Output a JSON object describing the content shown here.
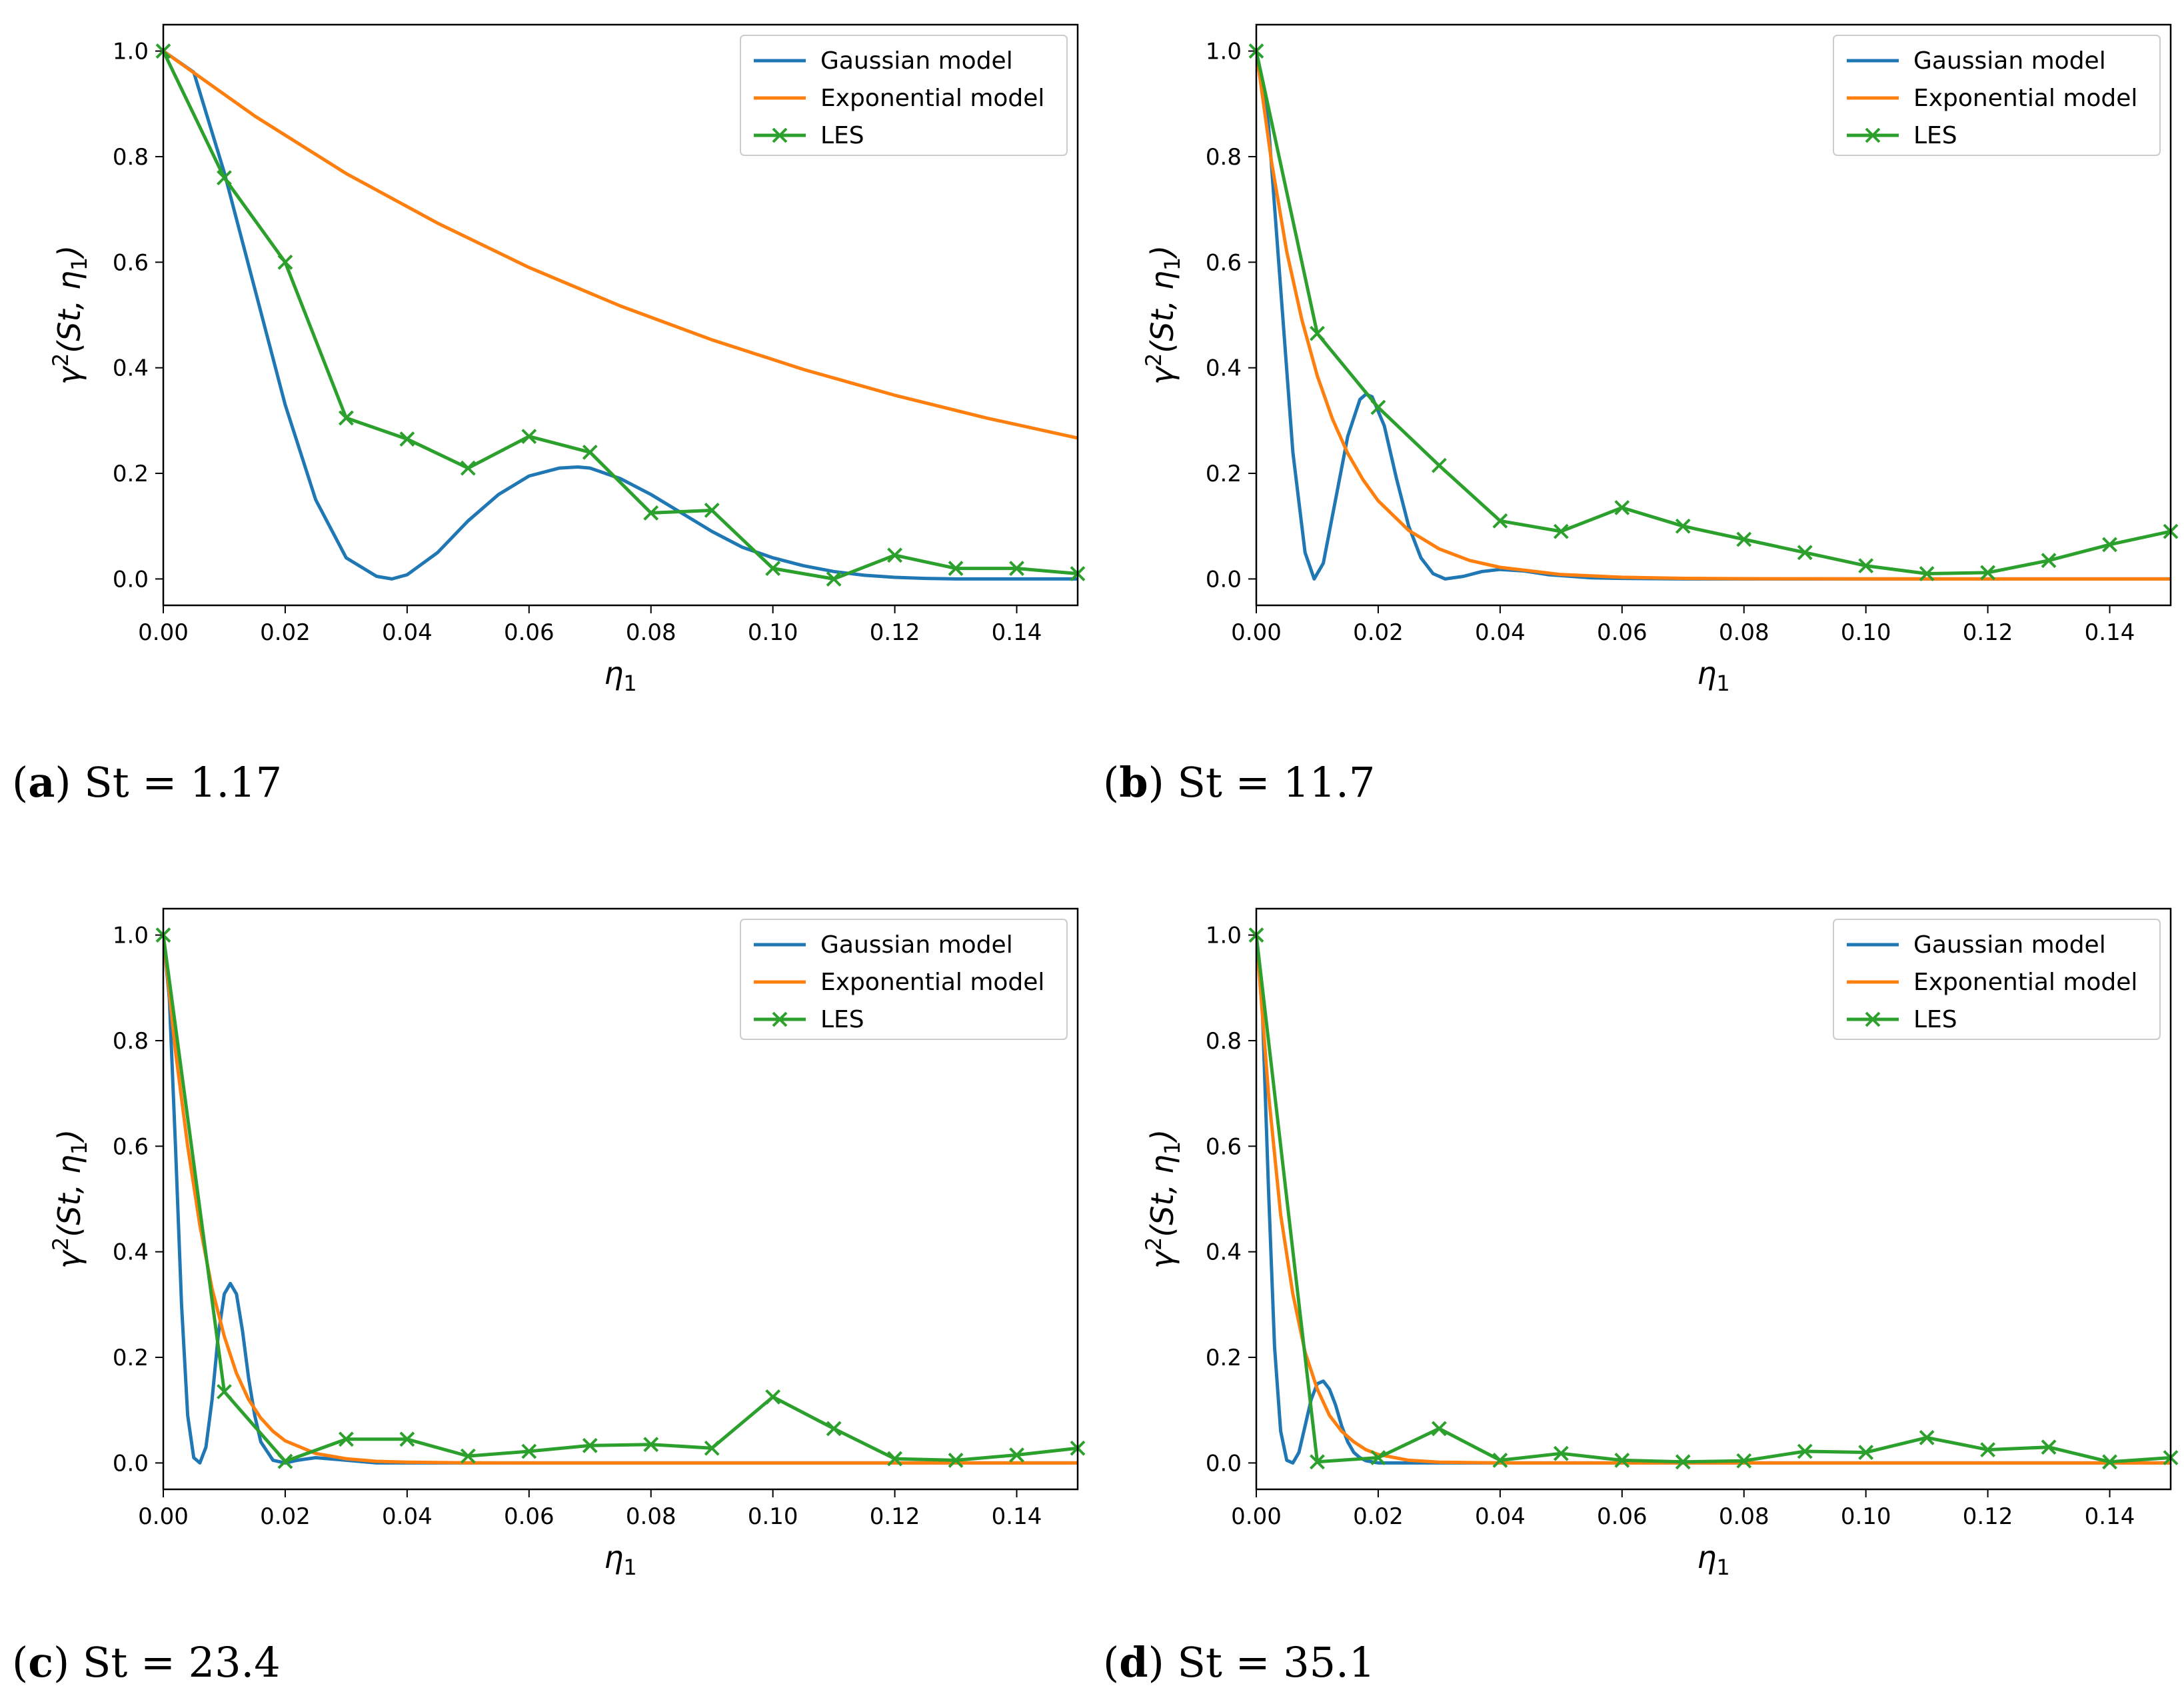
{
  "legend": {
    "gaussian": "Gaussian model",
    "exponential": "Exponential model",
    "les": "LES"
  },
  "colors": {
    "gaussian": "#1f77b4",
    "exponential": "#ff7f0e",
    "les": "#2ca02c"
  },
  "chart_data": [
    {
      "type": "line",
      "panel": "(a)",
      "caption_letter": "a",
      "caption_text": "St = 1.17",
      "xlabel": "η1",
      "ylabel": "γ2(St, η1)",
      "xlim": [
        0,
        0.15
      ],
      "ylim": [
        -0.05,
        1.05
      ],
      "xticks": [
        "0.00",
        "0.02",
        "0.04",
        "0.06",
        "0.08",
        "0.10",
        "0.12",
        "0.14"
      ],
      "yticks": [
        "0.0",
        "0.2",
        "0.4",
        "0.6",
        "0.8",
        "1.0"
      ],
      "legend_position": "top-right",
      "series": [
        {
          "name": "Gaussian model",
          "key": "gaussian",
          "x": [
            0,
            0.005,
            0.01,
            0.015,
            0.02,
            0.025,
            0.03,
            0.035,
            0.0375,
            0.04,
            0.045,
            0.05,
            0.055,
            0.06,
            0.065,
            0.068,
            0.07,
            0.075,
            0.08,
            0.085,
            0.09,
            0.095,
            0.1,
            0.105,
            0.11,
            0.115,
            0.12,
            0.125,
            0.13,
            0.14,
            0.15
          ],
          "y": [
            1.0,
            0.96,
            0.77,
            0.55,
            0.33,
            0.15,
            0.04,
            0.005,
            0.0,
            0.008,
            0.05,
            0.11,
            0.16,
            0.195,
            0.21,
            0.212,
            0.21,
            0.19,
            0.16,
            0.125,
            0.09,
            0.06,
            0.04,
            0.025,
            0.014,
            0.007,
            0.003,
            0.001,
            0.0,
            0.0,
            0.0
          ]
        },
        {
          "name": "Exponential model",
          "key": "exponential",
          "x": [
            0,
            0.015,
            0.03,
            0.045,
            0.06,
            0.075,
            0.09,
            0.105,
            0.12,
            0.135,
            0.15
          ],
          "y": [
            1.0,
            0.877,
            0.768,
            0.674,
            0.59,
            0.517,
            0.453,
            0.397,
            0.348,
            0.305,
            0.267
          ]
        },
        {
          "name": "LES",
          "key": "les",
          "x": [
            0,
            0.01,
            0.02,
            0.03,
            0.04,
            0.05,
            0.06,
            0.07,
            0.08,
            0.09,
            0.1,
            0.11,
            0.12,
            0.13,
            0.14,
            0.15
          ],
          "y": [
            1.0,
            0.76,
            0.6,
            0.305,
            0.265,
            0.21,
            0.27,
            0.24,
            0.125,
            0.13,
            0.02,
            0.0,
            0.045,
            0.02,
            0.02,
            0.01
          ]
        }
      ]
    },
    {
      "type": "line",
      "panel": "(b)",
      "caption_letter": "b",
      "caption_text": "St = 11.7",
      "xlabel": "η1",
      "ylabel": "γ2(St, η1)",
      "xlim": [
        0,
        0.15
      ],
      "ylim": [
        -0.05,
        1.05
      ],
      "xticks": [
        "0.00",
        "0.02",
        "0.04",
        "0.06",
        "0.08",
        "0.10",
        "0.12",
        "0.14"
      ],
      "yticks": [
        "0.0",
        "0.2",
        "0.4",
        "0.6",
        "0.8",
        "1.0"
      ],
      "legend_position": "top-right",
      "series": [
        {
          "name": "Gaussian model",
          "key": "gaussian",
          "x": [
            0,
            0.002,
            0.004,
            0.006,
            0.008,
            0.0095,
            0.011,
            0.013,
            0.015,
            0.017,
            0.018,
            0.019,
            0.021,
            0.023,
            0.025,
            0.027,
            0.029,
            0.031,
            0.034,
            0.037,
            0.04,
            0.044,
            0.048,
            0.055,
            0.06,
            0.07,
            0.08,
            0.1,
            0.15
          ],
          "y": [
            1.0,
            0.86,
            0.55,
            0.24,
            0.05,
            0.0,
            0.03,
            0.15,
            0.27,
            0.34,
            0.35,
            0.345,
            0.29,
            0.19,
            0.1,
            0.04,
            0.01,
            0.0,
            0.005,
            0.014,
            0.018,
            0.015,
            0.008,
            0.002,
            0.001,
            0.0,
            0.0,
            0.0,
            0.0
          ]
        },
        {
          "name": "Exponential model",
          "key": "exponential",
          "x": [
            0,
            0.0025,
            0.005,
            0.0075,
            0.01,
            0.0125,
            0.015,
            0.0175,
            0.02,
            0.025,
            0.03,
            0.035,
            0.04,
            0.05,
            0.06,
            0.07,
            0.08,
            0.1,
            0.12,
            0.15
          ],
          "y": [
            1.0,
            0.79,
            0.62,
            0.49,
            0.385,
            0.303,
            0.238,
            0.188,
            0.148,
            0.092,
            0.057,
            0.035,
            0.022,
            0.0084,
            0.0032,
            0.0012,
            0.0005,
            0.0001,
            0.0,
            0.0
          ]
        },
        {
          "name": "LES",
          "key": "les",
          "x": [
            0,
            0.01,
            0.02,
            0.03,
            0.04,
            0.05,
            0.06,
            0.07,
            0.08,
            0.09,
            0.1,
            0.11,
            0.12,
            0.13,
            0.14,
            0.15
          ],
          "y": [
            1.0,
            0.465,
            0.325,
            0.215,
            0.11,
            0.09,
            0.135,
            0.1,
            0.075,
            0.05,
            0.025,
            0.01,
            0.012,
            0.035,
            0.065,
            0.09
          ]
        }
      ]
    },
    {
      "type": "line",
      "panel": "(c)",
      "caption_letter": "c",
      "caption_text": "St = 23.4",
      "xlabel": "η1",
      "ylabel": "γ2(St, η1)",
      "xlim": [
        0,
        0.15
      ],
      "ylim": [
        -0.05,
        1.05
      ],
      "xticks": [
        "0.00",
        "0.02",
        "0.04",
        "0.06",
        "0.08",
        "0.10",
        "0.12",
        "0.14"
      ],
      "yticks": [
        "0.0",
        "0.2",
        "0.4",
        "0.6",
        "0.8",
        "1.0"
      ],
      "legend_position": "top-right",
      "series": [
        {
          "name": "Gaussian model",
          "key": "gaussian",
          "x": [
            0,
            0.001,
            0.002,
            0.003,
            0.004,
            0.005,
            0.006,
            0.007,
            0.008,
            0.009,
            0.01,
            0.011,
            0.012,
            0.013,
            0.014,
            0.015,
            0.016,
            0.018,
            0.02,
            0.022,
            0.025,
            0.03,
            0.035,
            0.04,
            0.15
          ],
          "y": [
            1.0,
            0.88,
            0.6,
            0.3,
            0.09,
            0.01,
            0.0,
            0.03,
            0.12,
            0.24,
            0.32,
            0.34,
            0.32,
            0.25,
            0.16,
            0.09,
            0.04,
            0.005,
            0.0,
            0.005,
            0.01,
            0.005,
            0.0,
            0.0,
            0.0
          ]
        },
        {
          "name": "Exponential model",
          "key": "exponential",
          "x": [
            0,
            0.002,
            0.004,
            0.006,
            0.008,
            0.01,
            0.012,
            0.014,
            0.016,
            0.018,
            0.02,
            0.025,
            0.03,
            0.035,
            0.04,
            0.05,
            0.06,
            0.15
          ],
          "y": [
            1.0,
            0.78,
            0.6,
            0.45,
            0.33,
            0.24,
            0.17,
            0.12,
            0.085,
            0.06,
            0.042,
            0.018,
            0.008,
            0.003,
            0.0014,
            0.0003,
            0.0,
            0.0
          ]
        },
        {
          "name": "LES",
          "key": "les",
          "x": [
            0,
            0.01,
            0.02,
            0.03,
            0.04,
            0.05,
            0.06,
            0.07,
            0.08,
            0.09,
            0.1,
            0.11,
            0.12,
            0.13,
            0.14,
            0.15
          ],
          "y": [
            1.0,
            0.135,
            0.003,
            0.045,
            0.045,
            0.013,
            0.022,
            0.033,
            0.035,
            0.028,
            0.125,
            0.065,
            0.008,
            0.005,
            0.015,
            0.028
          ]
        }
      ]
    },
    {
      "type": "line",
      "panel": "(d)",
      "caption_letter": "d",
      "caption_text": "St = 35.1",
      "xlabel": "η1",
      "ylabel": "γ2(St, η1)",
      "xlim": [
        0,
        0.15
      ],
      "ylim": [
        -0.05,
        1.05
      ],
      "xticks": [
        "0.00",
        "0.02",
        "0.04",
        "0.06",
        "0.08",
        "0.10",
        "0.12",
        "0.14"
      ],
      "yticks": [
        "0.0",
        "0.2",
        "0.4",
        "0.6",
        "0.8",
        "1.0"
      ],
      "legend_position": "top-right",
      "series": [
        {
          "name": "Gaussian model",
          "key": "gaussian",
          "x": [
            0,
            0.001,
            0.002,
            0.003,
            0.004,
            0.005,
            0.006,
            0.007,
            0.008,
            0.009,
            0.01,
            0.011,
            0.012,
            0.013,
            0.014,
            0.015,
            0.016,
            0.017,
            0.018,
            0.02,
            0.022,
            0.025,
            0.03,
            0.15
          ],
          "y": [
            1.0,
            0.86,
            0.52,
            0.22,
            0.06,
            0.005,
            0.0,
            0.02,
            0.07,
            0.12,
            0.15,
            0.155,
            0.14,
            0.11,
            0.07,
            0.04,
            0.02,
            0.01,
            0.004,
            0.0,
            0.0,
            0.0,
            0.0,
            0.0
          ]
        },
        {
          "name": "Exponential model",
          "key": "exponential",
          "x": [
            0,
            0.002,
            0.004,
            0.006,
            0.008,
            0.01,
            0.012,
            0.014,
            0.016,
            0.018,
            0.02,
            0.025,
            0.03,
            0.04,
            0.15
          ],
          "y": [
            1.0,
            0.7,
            0.47,
            0.32,
            0.21,
            0.14,
            0.09,
            0.06,
            0.04,
            0.025,
            0.016,
            0.005,
            0.0015,
            0.0,
            0.0
          ]
        },
        {
          "name": "LES",
          "key": "les",
          "x": [
            0,
            0.01,
            0.02,
            0.03,
            0.04,
            0.05,
            0.06,
            0.07,
            0.08,
            0.09,
            0.1,
            0.11,
            0.12,
            0.13,
            0.14,
            0.15
          ],
          "y": [
            1.0,
            0.002,
            0.01,
            0.065,
            0.005,
            0.018,
            0.005,
            0.002,
            0.004,
            0.022,
            0.02,
            0.048,
            0.025,
            0.03,
            0.002,
            0.01
          ]
        }
      ]
    }
  ]
}
